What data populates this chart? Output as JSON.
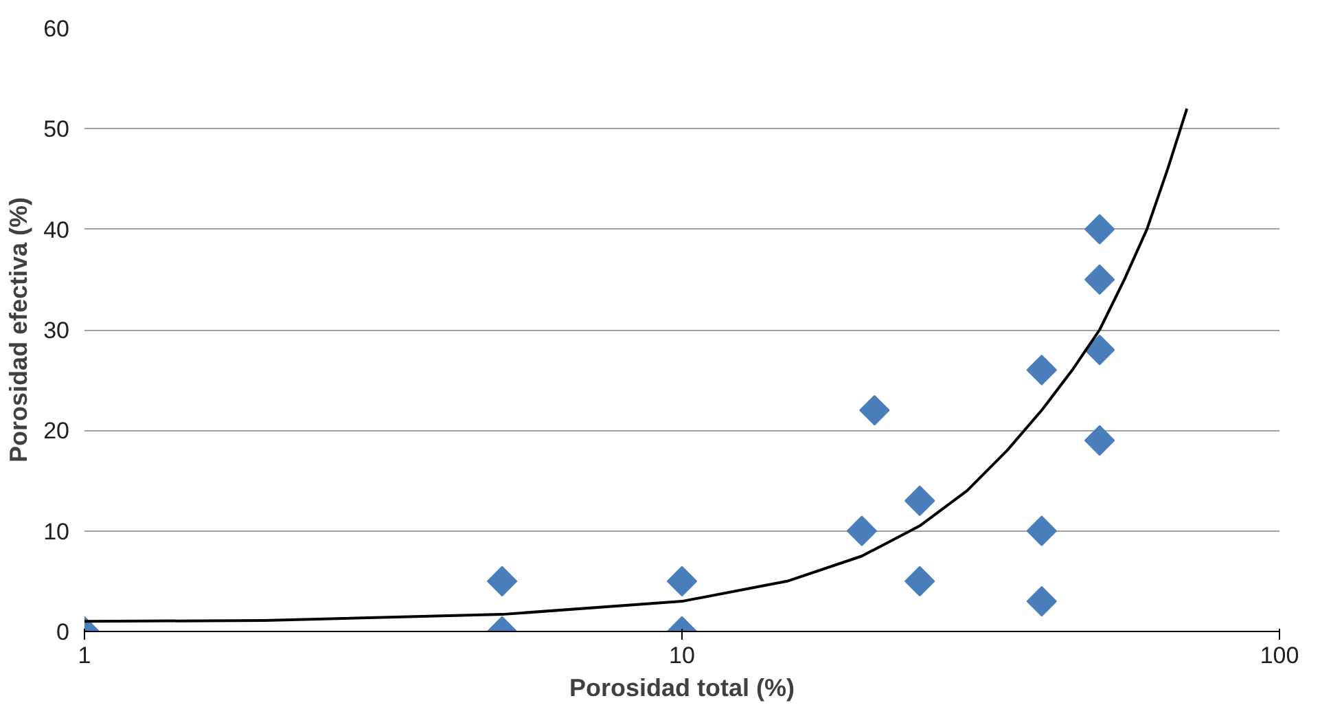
{
  "chart_data": {
    "type": "scatter",
    "xlabel": "Porosidad total (%)",
    "ylabel": "Porosidad efectiva (%)",
    "log": "x",
    "xlim": [
      1,
      100
    ],
    "xticks": [
      1,
      10,
      100
    ],
    "ylim": [
      0,
      60
    ],
    "yticks": [
      0,
      10,
      20,
      30,
      40,
      50,
      60
    ],
    "grid": "y",
    "series": [
      {
        "marker": "diamond",
        "color": "#4a7ebb",
        "x": [
          1,
          5,
          5,
          10,
          10,
          20,
          21,
          25,
          25,
          40,
          40,
          40,
          50,
          50,
          50,
          50
        ],
        "values": [
          0,
          5,
          0,
          5,
          0,
          10,
          22,
          13,
          5,
          10,
          3,
          26,
          40,
          35,
          28,
          19
        ]
      },
      {
        "type": "line",
        "marker": "none",
        "line_style": "solid",
        "color": "#000000",
        "x": [
          1,
          2,
          5,
          10,
          15,
          20,
          25,
          30,
          35,
          40,
          45,
          50,
          55,
          60,
          65,
          70
        ],
        "values": [
          1,
          1.1,
          1.7,
          3,
          5,
          7.5,
          10.5,
          14,
          18,
          22,
          26,
          30,
          35,
          40,
          46,
          52
        ]
      }
    ]
  }
}
